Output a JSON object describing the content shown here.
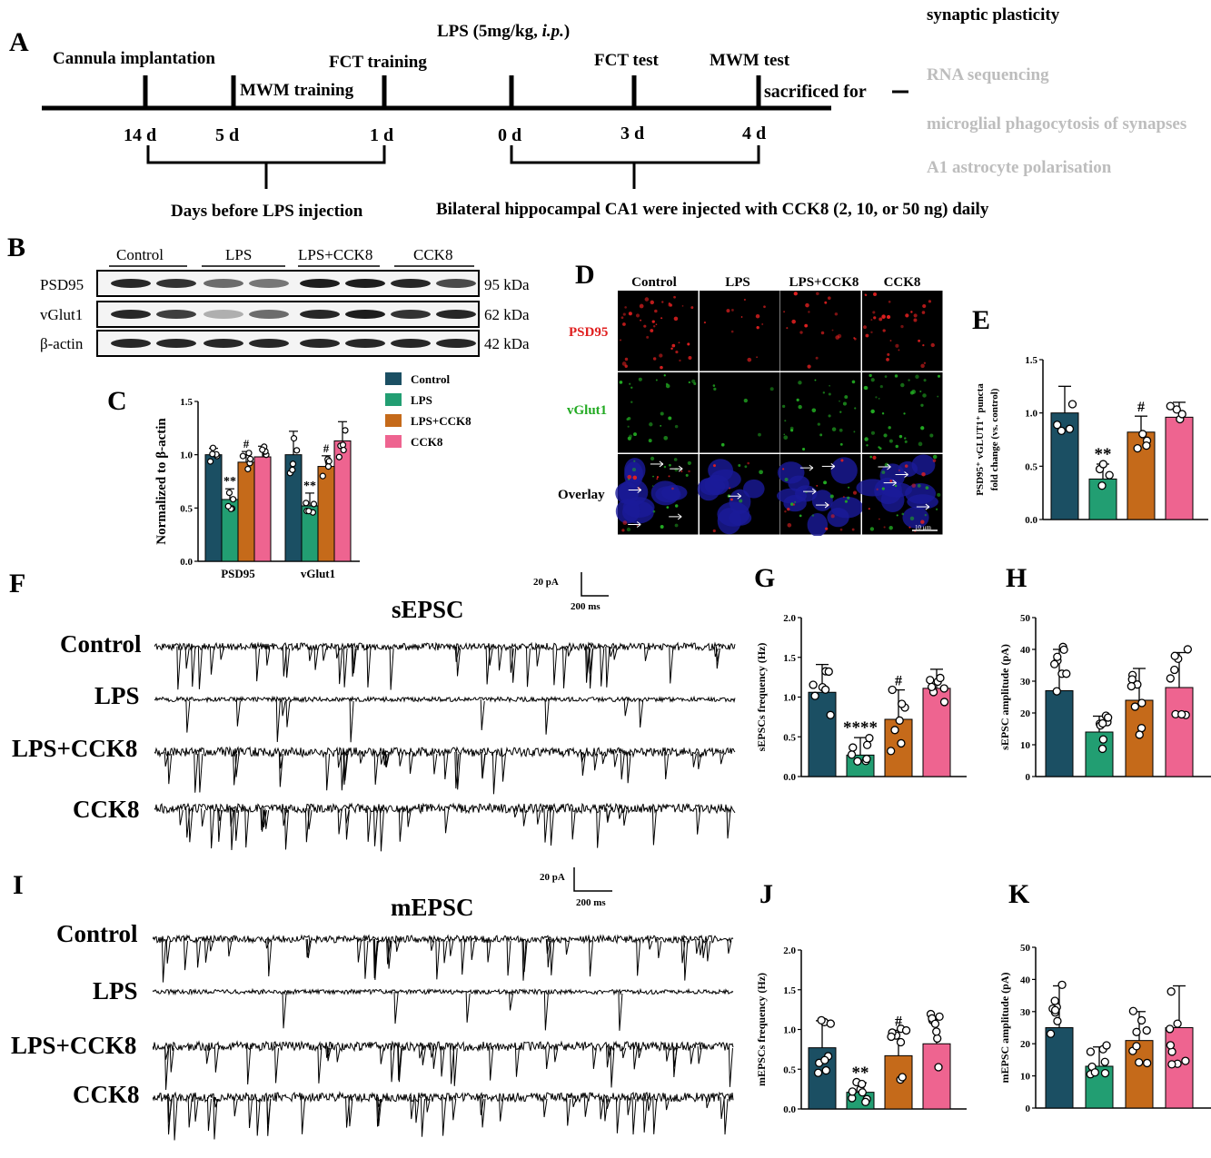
{
  "colors": {
    "control": "#1b4f63",
    "lps": "#229e72",
    "lps_cck8": "#c56a1a",
    "cck8": "#ee6490",
    "psd95_red": "#e02020",
    "vglut1_green": "#22aa22"
  },
  "panel_a": {
    "letter": "A",
    "top_labels": [
      "Cannula implantation",
      "MWM training",
      "FCT training",
      "LPS (5mg/kg, ",
      "i.p.",
      ")",
      "FCT test",
      "MWM test",
      "sacrificed for"
    ],
    "days": [
      "14 d",
      "5 d",
      "1 d",
      "0 d",
      "3 d",
      "4 d"
    ],
    "under_left": "Days before LPS injection",
    "under_right": "Bilateral hippocampal CA1 were injected  with CCK8 (2, 10, or 50 ng) daily",
    "bracket_items": [
      "synaptic plasticity",
      "RNA sequencing",
      "microglial phagocytosis of synapses",
      "A1 astrocyte polarisation"
    ]
  },
  "panel_b": {
    "letter": "B",
    "groups": [
      "Control",
      "LPS",
      "LPS+CCK8",
      "CCK8"
    ],
    "proteins": [
      "PSD95",
      "vGlut1",
      "β-actin"
    ],
    "kda": [
      "95 kDa",
      "62 kDa",
      "42 kDa"
    ]
  },
  "panel_c": {
    "letter": "C",
    "legend": [
      "Control",
      "LPS",
      "LPS+CCK8",
      "CCK8"
    ],
    "chart_data": {
      "type": "bar",
      "ylabel": "Normalized to β-actin",
      "categories": [
        "PSD95",
        "vGlut1"
      ],
      "ylim": [
        0,
        1.5
      ],
      "yticks": [
        "0.0",
        "0.5",
        "1.0",
        "1.5"
      ],
      "series": [
        {
          "name": "Control",
          "values": [
            1.0,
            1.0
          ],
          "err": [
            0.06,
            0.22
          ]
        },
        {
          "name": "LPS",
          "values": [
            0.58,
            0.52
          ],
          "err": [
            0.1,
            0.12
          ]
        },
        {
          "name": "LPS+CCK8",
          "values": [
            0.93,
            0.89
          ],
          "err": [
            0.1,
            0.1
          ]
        },
        {
          "name": "CCK8",
          "values": [
            0.98,
            1.13
          ],
          "err": [
            0.1,
            0.18
          ]
        }
      ],
      "annotations": [
        "**",
        "#",
        "**",
        "#"
      ]
    }
  },
  "panel_d": {
    "letter": "D",
    "columns": [
      "Control",
      "LPS",
      "LPS+CCK8",
      "CCK8"
    ],
    "rows": [
      "PSD95",
      "vGlut1",
      "Overlay"
    ],
    "scale": "10 μm"
  },
  "panel_e": {
    "letter": "E",
    "chart_data": {
      "type": "bar",
      "ylabel_line1": "PSD95⁺ vGLUT1⁺ puncta",
      "ylabel_line2": "fold change (vs. control)",
      "categories": [
        "Control",
        "LPS",
        "LPS+CCK8",
        "CCK8"
      ],
      "values": [
        1.0,
        0.38,
        0.82,
        0.96
      ],
      "err": [
        0.25,
        0.14,
        0.15,
        0.14
      ],
      "ylim": [
        0,
        1.5
      ],
      "yticks": [
        "0.0",
        "0.5",
        "1.0",
        "1.5"
      ],
      "annotations": [
        "",
        "**",
        "#",
        ""
      ]
    }
  },
  "panel_f": {
    "letter": "F",
    "title": "sEPSC",
    "traces": [
      "Control",
      "LPS",
      "LPS+CCK8",
      "CCK8"
    ],
    "scale_y": "20 pA",
    "scale_x": "200 ms"
  },
  "panel_g": {
    "letter": "G",
    "chart_data": {
      "type": "bar",
      "ylabel": "sEPSCs frequency (Hz)",
      "categories": [
        "Control",
        "LPS",
        "LPS+CCK8",
        "CCK8"
      ],
      "values": [
        1.06,
        0.27,
        0.72,
        1.11
      ],
      "err": [
        0.35,
        0.22,
        0.37,
        0.24
      ],
      "ylim": [
        0,
        2.0
      ],
      "yticks": [
        "0.0",
        "0.5",
        "1.0",
        "1.5",
        "2.0"
      ],
      "annotations": [
        "",
        "****",
        "#",
        ""
      ]
    }
  },
  "panel_h": {
    "letter": "H",
    "chart_data": {
      "type": "bar",
      "ylabel": "sEPSC amplitude (pA)",
      "categories": [
        "Control",
        "LPS",
        "LPS+CCK8",
        "CCK8"
      ],
      "values": [
        27,
        14,
        24,
        28
      ],
      "err": [
        13,
        5,
        10,
        11
      ],
      "ylim": [
        0,
        50
      ],
      "yticks": [
        "0",
        "10",
        "20",
        "30",
        "40",
        "50"
      ],
      "annotations": [
        "",
        "",
        "",
        ""
      ]
    }
  },
  "panel_i": {
    "letter": "I",
    "title": "mEPSC",
    "traces": [
      "Control",
      "LPS",
      "LPS+CCK8",
      "CCK8"
    ],
    "scale_y": "20 pA",
    "scale_x": "200 ms"
  },
  "panel_j": {
    "letter": "J",
    "chart_data": {
      "type": "bar",
      "ylabel": "mEPSCs frequency (Hz)",
      "categories": [
        "Control",
        "LPS",
        "LPS+CCK8",
        "CCK8"
      ],
      "values": [
        0.77,
        0.21,
        0.67,
        0.82
      ],
      "err": [
        0.34,
        0.12,
        0.32,
        0.34
      ],
      "ylim": [
        0,
        2.0
      ],
      "yticks": [
        "0.0",
        "0.5",
        "1.0",
        "1.5",
        "2.0"
      ],
      "annotations": [
        "",
        "**",
        "#",
        ""
      ]
    }
  },
  "panel_k": {
    "letter": "K",
    "chart_data": {
      "type": "bar",
      "ylabel": "mEPSC amplitude (pA)",
      "categories": [
        "Control",
        "LPS",
        "LPS+CCK8",
        "CCK8"
      ],
      "values": [
        25,
        13,
        21,
        25
      ],
      "err": [
        13,
        6,
        9,
        13
      ],
      "ylim": [
        0,
        50
      ],
      "yticks": [
        "0",
        "10",
        "20",
        "30",
        "40",
        "50"
      ],
      "annotations": [
        "",
        "",
        "",
        ""
      ]
    }
  }
}
